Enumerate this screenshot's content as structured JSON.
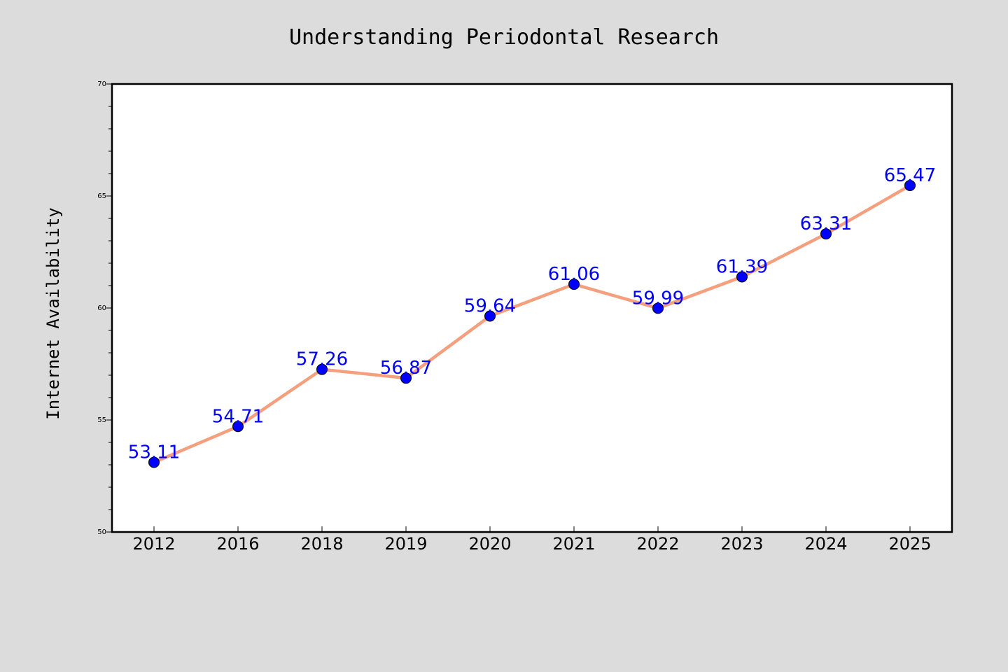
{
  "chart_data": {
    "type": "line",
    "title": "Understanding Periodontal Research",
    "xlabel": "",
    "ylabel": "Internet Availability",
    "categories": [
      "2012",
      "2016",
      "2018",
      "2019",
      "2020",
      "2021",
      "2022",
      "2023",
      "2024",
      "2025"
    ],
    "series": [
      {
        "values": [
          53.11,
          54.71,
          57.26,
          56.87,
          59.64,
          61.06,
          59.99,
          61.39,
          63.31,
          65.47
        ],
        "labels": [
          "53.11",
          "54.71",
          "57.26",
          "56.87",
          "59.64",
          "61.06",
          "59.99",
          "61.39",
          "63.31",
          "65.47"
        ],
        "line_color": "#f4a07e",
        "marker_color": "#0000ff",
        "label_color": "#0000ff"
      }
    ],
    "ylim": [
      50,
      70
    ],
    "yticks": [
      "50",
      "55",
      "60",
      "65",
      "70"
    ],
    "grid": false,
    "background_color": "#dcdcdc",
    "plot_background_color": "#ffffff"
  }
}
